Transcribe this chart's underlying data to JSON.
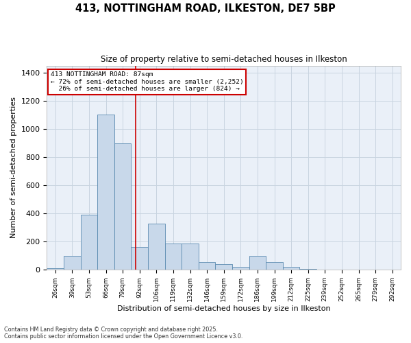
{
  "title_line1": "413, NOTTINGHAM ROAD, ILKESTON, DE7 5BP",
  "title_line2": "Size of property relative to semi-detached houses in Ilkeston",
  "xlabel": "Distribution of semi-detached houses by size in Ilkeston",
  "ylabel": "Number of semi-detached properties",
  "footnote1": "Contains HM Land Registry data © Crown copyright and database right 2025.",
  "footnote2": "Contains public sector information licensed under the Open Government Licence v3.0.",
  "bar_color": "#c8d8ea",
  "bar_edge_color": "#5a8ab0",
  "grid_color": "#c8d4e0",
  "background_color": "#eaf0f8",
  "annotation_box_color": "#cc0000",
  "vline_color": "#cc0000",
  "categories": [
    "26sqm",
    "39sqm",
    "53sqm",
    "66sqm",
    "79sqm",
    "92sqm",
    "106sqm",
    "119sqm",
    "132sqm",
    "146sqm",
    "159sqm",
    "172sqm",
    "186sqm",
    "199sqm",
    "212sqm",
    "225sqm",
    "239sqm",
    "252sqm",
    "265sqm",
    "279sqm",
    "292sqm"
  ],
  "values": [
    10,
    100,
    390,
    1100,
    900,
    160,
    330,
    185,
    185,
    55,
    40,
    20,
    100,
    55,
    20,
    5,
    3,
    2,
    1,
    1,
    0
  ],
  "ylim": [
    0,
    1450
  ],
  "yticks": [
    0,
    200,
    400,
    600,
    800,
    1000,
    1200,
    1400
  ],
  "pct_smaller": 72,
  "pct_smaller_n": 2252,
  "pct_larger": 26,
  "pct_larger_n": 824,
  "property_sqm": 87,
  "vline_x": 4.75
}
